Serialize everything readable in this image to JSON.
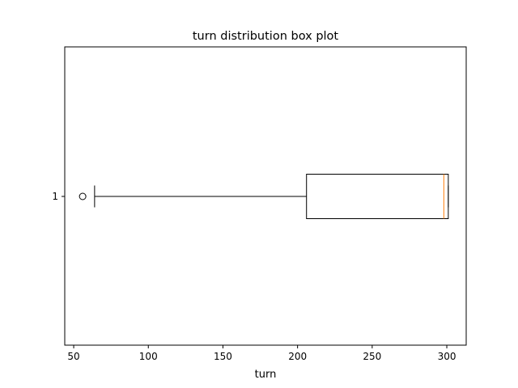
{
  "chart_data": {
    "type": "box",
    "title": "turn distribution box plot",
    "xlabel": "turn",
    "ylabel": "",
    "orientation": "horizontal",
    "xlim": [
      44,
      313
    ],
    "x_ticks": [
      50,
      100,
      150,
      200,
      250,
      300
    ],
    "categories": [
      "1"
    ],
    "boxes": [
      {
        "label": "1",
        "whisker_low": 64,
        "q1": 206,
        "median": 298,
        "q3": 301,
        "whisker_high": 301,
        "outliers": [
          56
        ]
      }
    ],
    "colors": {
      "box": "#000000",
      "median": "#ff7f0e",
      "whisker": "#000000",
      "outlier": "#000000"
    },
    "grid": false
  }
}
